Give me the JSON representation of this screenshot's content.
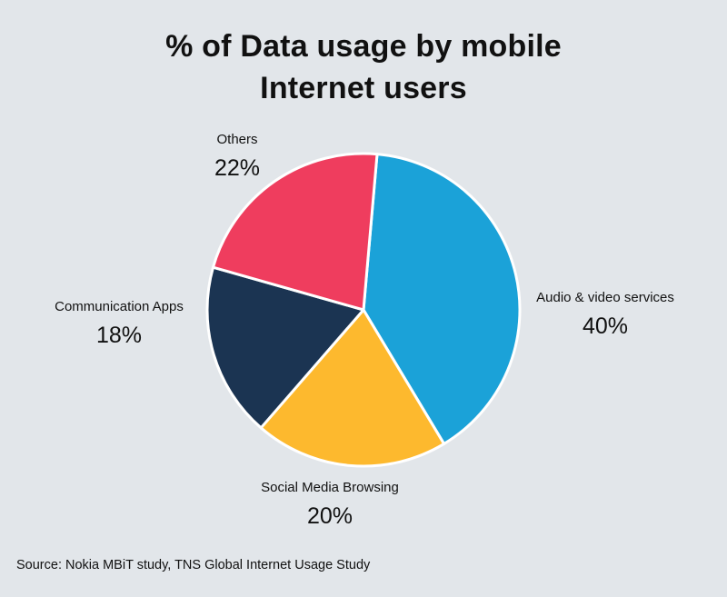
{
  "title_lines": [
    "% of Data usage by mobile",
    "Internet users"
  ],
  "source": "Source: Nokia MBiT study, TNS Global Internet Usage Study",
  "chart_data": {
    "type": "pie",
    "title": "% of Data usage by mobile Internet users",
    "slices": [
      {
        "name": "Audio & video services",
        "value": 40,
        "label": "40%",
        "color": "#1ba2d8"
      },
      {
        "name": "Social Media Browsing",
        "value": 20,
        "label": "20%",
        "color": "#fdb92e"
      },
      {
        "name": "Communication Apps",
        "value": 18,
        "label": "18%",
        "color": "#1b3452"
      },
      {
        "name": "Others",
        "value": 22,
        "label": "22%",
        "color": "#ef3d5e"
      }
    ],
    "start_angle_deg": 5,
    "direction": "clockwise",
    "slice_border_color": "#ffffff"
  }
}
